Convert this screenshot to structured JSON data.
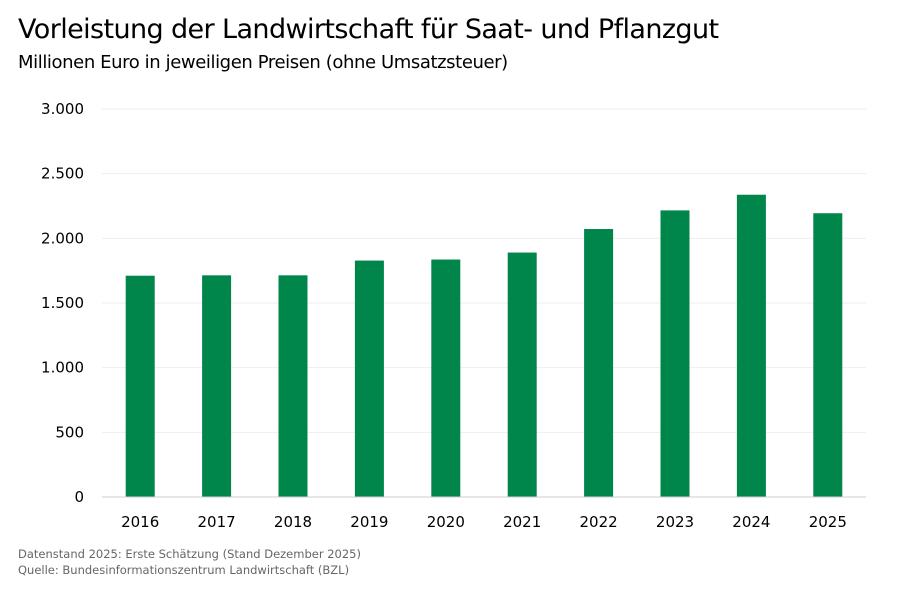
{
  "chart_data": {
    "type": "bar",
    "title": "Vorleistung der Landwirtschaft für Saat- und Pflanzgut",
    "subtitle": "Millionen Euro in jeweiligen Preisen (ohne Umsatzsteuer)",
    "categories": [
      "2016",
      "2017",
      "2018",
      "2019",
      "2020",
      "2021",
      "2022",
      "2023",
      "2024",
      "2025"
    ],
    "values": [
      1711,
      1714,
      1714,
      1828,
      1836,
      1890,
      2072,
      2216,
      2337,
      2194
    ],
    "ylim": [
      0,
      3000
    ],
    "yticks": [
      0,
      500,
      1000,
      1500,
      2000,
      2500,
      3000
    ],
    "ytick_labels": [
      "0",
      "500",
      "1.000",
      "1.500",
      "2.000",
      "2.500",
      "3.000"
    ],
    "grid": true,
    "bar_color": "#00854a",
    "xlabel": "",
    "ylabel": ""
  },
  "notes": {
    "datenstand": "Datenstand 2025: Erste Schätzung (Stand Dezember 2025)",
    "quelle": "Quelle: Bundesinformationszentrum Landwirtschaft (BZL)"
  }
}
